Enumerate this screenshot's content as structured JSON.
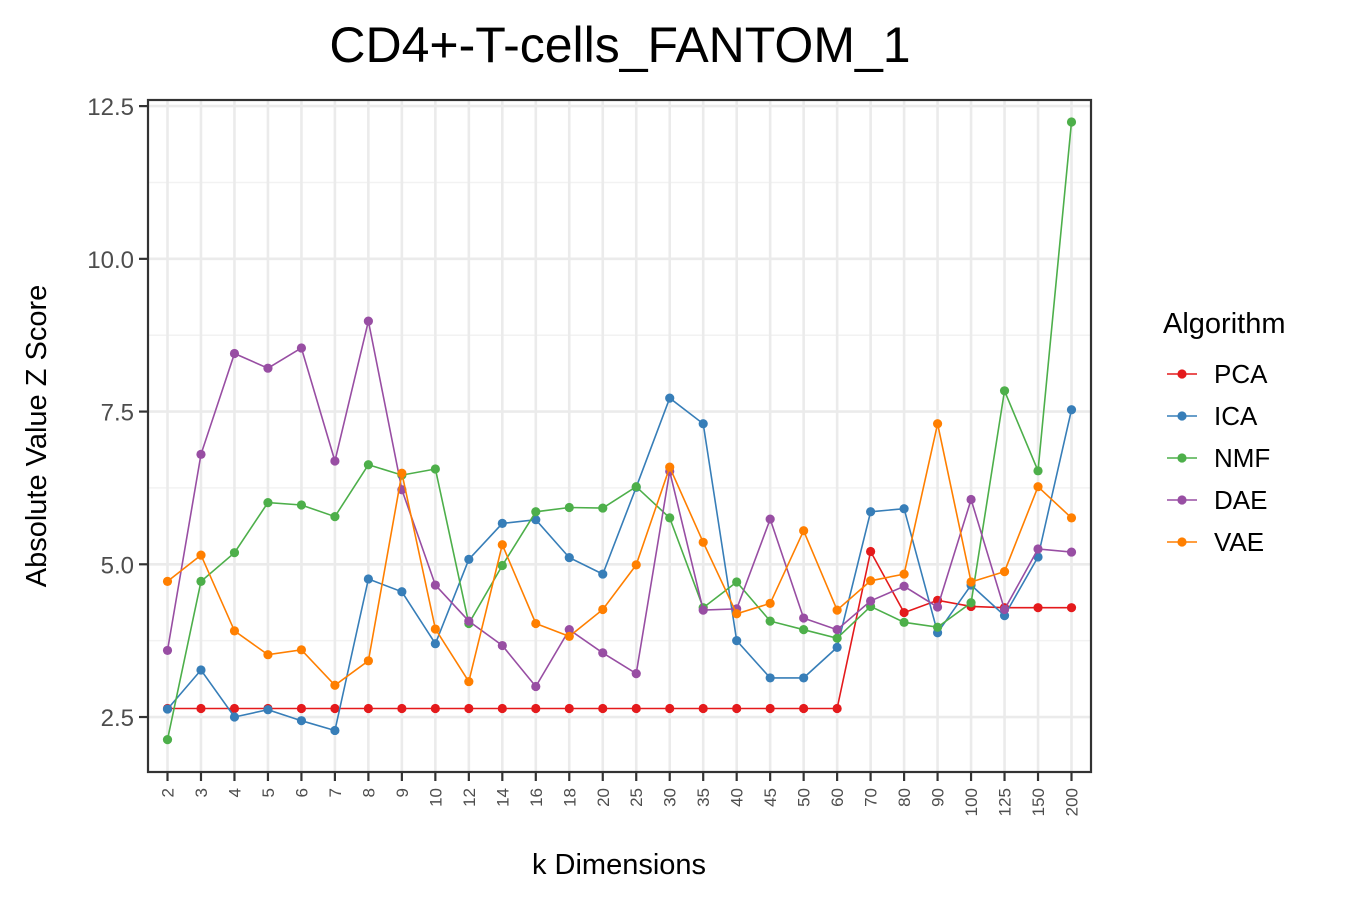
{
  "chart_data": {
    "type": "line",
    "title": "CD4+-T-cells_FANTOM_1",
    "xlabel": "k Dimensions",
    "ylabel": "Absolute Value Z Score",
    "x_categories": [
      "2",
      "3",
      "4",
      "5",
      "6",
      "7",
      "8",
      "9",
      "10",
      "12",
      "14",
      "16",
      "18",
      "20",
      "25",
      "30",
      "35",
      "40",
      "45",
      "50",
      "60",
      "70",
      "80",
      "90",
      "100",
      "125",
      "150",
      "200"
    ],
    "y_ticks": [
      "2.5",
      "5.0",
      "7.5",
      "10.0",
      "12.5"
    ],
    "y_tick_values": [
      2.5,
      5.0,
      7.5,
      10.0,
      12.5
    ],
    "ylim": [
      1.6,
      12.6
    ],
    "grid": true,
    "legend_title": "Algorithm",
    "legend_position": "right",
    "series": [
      {
        "name": "PCA",
        "color": "#e41a1c",
        "values": [
          2.64,
          2.64,
          2.64,
          2.64,
          2.64,
          2.64,
          2.64,
          2.64,
          2.64,
          2.64,
          2.64,
          2.64,
          2.64,
          2.64,
          2.64,
          2.64,
          2.64,
          2.64,
          2.64,
          2.64,
          2.64,
          5.21,
          4.21,
          4.41,
          4.31,
          4.29,
          4.29,
          4.29
        ]
      },
      {
        "name": "ICA",
        "color": "#377eb8",
        "values": [
          2.63,
          3.27,
          2.5,
          2.62,
          2.44,
          2.28,
          4.76,
          4.55,
          3.7,
          5.08,
          5.67,
          5.73,
          5.11,
          4.84,
          6.26,
          7.72,
          7.3,
          3.75,
          3.14,
          3.14,
          3.64,
          5.86,
          5.91,
          3.88,
          4.66,
          4.16,
          5.12,
          7.53
        ]
      },
      {
        "name": "NMF",
        "color": "#4daf4a",
        "values": [
          2.13,
          4.72,
          5.19,
          6.01,
          5.97,
          5.78,
          6.63,
          6.46,
          6.56,
          4.03,
          4.98,
          5.86,
          5.93,
          5.92,
          6.27,
          5.76,
          4.29,
          4.71,
          4.07,
          3.93,
          3.79,
          4.31,
          4.05,
          3.97,
          4.37,
          7.84,
          6.53,
          12.24
        ]
      },
      {
        "name": "DAE",
        "color": "#984ea3",
        "values": [
          3.59,
          6.8,
          8.45,
          8.21,
          8.54,
          6.69,
          8.98,
          6.22,
          4.66,
          4.07,
          3.67,
          3.0,
          3.93,
          3.55,
          3.21,
          6.52,
          4.25,
          4.27,
          5.74,
          4.12,
          3.93,
          4.4,
          4.64,
          4.3,
          6.06,
          4.26,
          5.25,
          5.2
        ]
      },
      {
        "name": "VAE",
        "color": "#ff7f00",
        "values": [
          4.72,
          5.15,
          3.91,
          3.52,
          3.6,
          3.02,
          3.42,
          6.49,
          3.94,
          3.08,
          5.32,
          4.03,
          3.82,
          4.26,
          4.99,
          6.59,
          5.36,
          4.19,
          4.36,
          5.55,
          4.25,
          4.73,
          4.84,
          7.3,
          4.71,
          4.88,
          6.27,
          5.76
        ]
      }
    ]
  }
}
